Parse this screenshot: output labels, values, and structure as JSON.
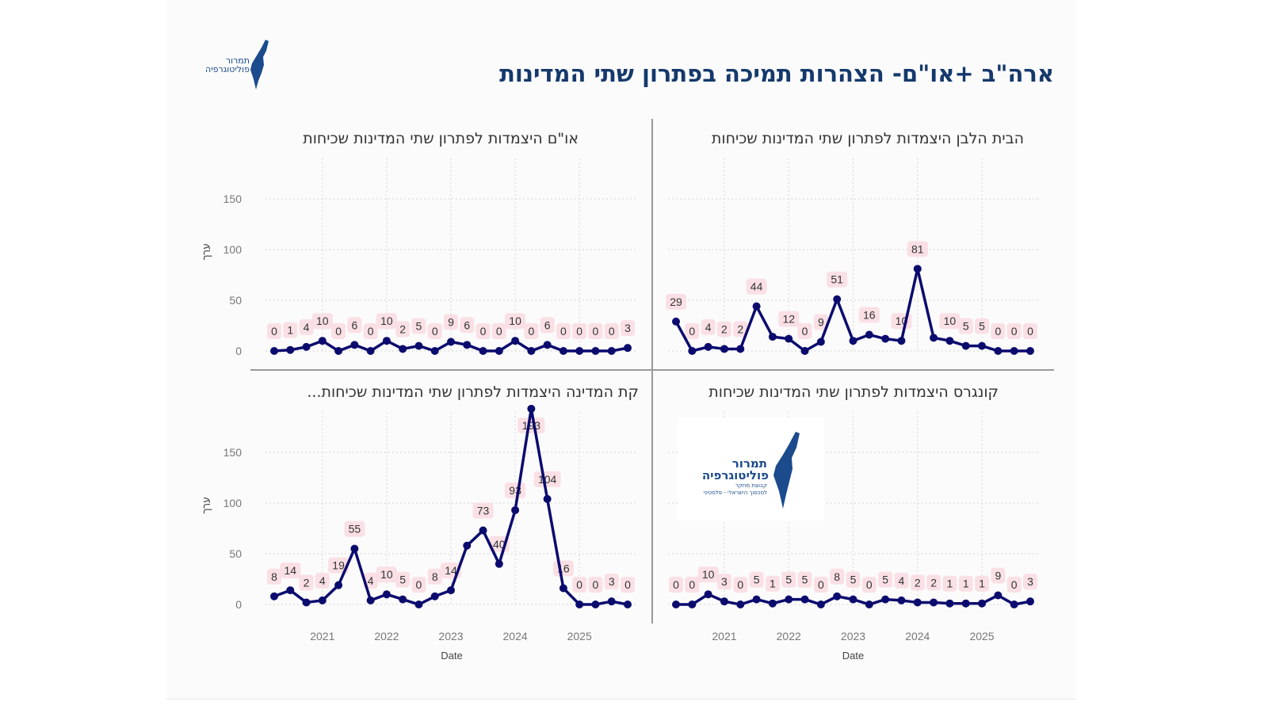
{
  "header": {
    "title": "ארה\"ב +או\"ם- הצהרות תמיכה בפתרון שתי המדינות",
    "logo_line1": "תמרור",
    "logo_line2": "פוליטוגרפיה"
  },
  "watermark_logo": {
    "line1": "תמרור",
    "line2": "פוליטוגרפיה",
    "line3": "קבוצת מחקר",
    "line4": "לסכסוך הישראלי - פלסטיני"
  },
  "colors": {
    "line": "#0b0b6e",
    "label_bg": "#f9dde2",
    "title": "#15396b"
  },
  "chart_data": [
    {
      "type": "line",
      "title": "הבית הלבן היצמדות לפתרון שתי המדינות שכיחות",
      "xlabel": "",
      "ylabel": "",
      "ylim": [
        0,
        180
      ],
      "x_ticks": [
        "2021",
        "2022",
        "2023",
        "2024",
        "2025"
      ],
      "values": [
        29,
        0,
        4,
        2,
        2,
        44,
        14,
        12,
        0,
        9,
        51,
        10,
        16,
        12,
        10,
        81,
        13,
        10,
        5,
        5,
        0,
        0,
        0
      ],
      "labels": [
        "29",
        "0",
        "4",
        "2",
        "2",
        "44",
        "",
        "12",
        "0",
        "9",
        "51",
        "",
        "16",
        "",
        "10",
        "81",
        "",
        "10",
        "5",
        "5",
        "0",
        "0",
        "0"
      ],
      "show_y_ticks": false,
      "show_x_ticks": false
    },
    {
      "type": "line",
      "title": "או\"ם היצמדות לפתרון שתי המדינות שכיחות",
      "xlabel": "",
      "ylabel": "ערך",
      "ylim": [
        0,
        180
      ],
      "y_ticks": [
        "0",
        "50",
        "100",
        "150"
      ],
      "x_ticks": [
        "2021",
        "2022",
        "2023",
        "2024",
        "2025"
      ],
      "values": [
        0,
        1,
        4,
        10,
        0,
        6,
        0,
        10,
        2,
        5,
        0,
        9,
        6,
        0,
        0,
        10,
        0,
        6,
        0,
        0,
        0,
        0,
        3
      ],
      "labels": [
        "0",
        "1",
        "4",
        "10",
        "0",
        "6",
        "0",
        "10",
        "2",
        "5",
        "0",
        "9",
        "6",
        "0",
        "0",
        "10",
        "0",
        "6",
        "0",
        "0",
        "0",
        "0",
        "3"
      ],
      "show_y_ticks": true,
      "show_x_ticks": false
    },
    {
      "type": "line",
      "title": "קונגרס היצמדות לפתרון שתי המדינות שכיחות",
      "xlabel": "Date",
      "ylabel": "",
      "ylim": [
        0,
        180
      ],
      "x_ticks": [
        "2021",
        "2022",
        "2023",
        "2024",
        "2025"
      ],
      "values": [
        0,
        0,
        10,
        3,
        0,
        5,
        1,
        5,
        5,
        0,
        8,
        5,
        0,
        5,
        4,
        2,
        2,
        1,
        1,
        1,
        9,
        0,
        3
      ],
      "labels": [
        "0",
        "0",
        "10",
        "3",
        "0",
        "5",
        "1",
        "5",
        "5",
        "0",
        "8",
        "5",
        "0",
        "5",
        "4",
        "2",
        "2",
        "1",
        "1",
        "1",
        "9",
        "0",
        "3"
      ],
      "show_y_ticks": false,
      "show_x_ticks": true
    },
    {
      "type": "line",
      "title": "קת המדינה היצמדות לפתרון שתי המדינות שכיחות...",
      "xlabel": "Date",
      "ylabel": "ערך",
      "ylim": [
        0,
        180
      ],
      "y_ticks": [
        "0",
        "50",
        "100",
        "150"
      ],
      "x_ticks": [
        "2021",
        "2022",
        "2023",
        "2024",
        "2025"
      ],
      "values": [
        8,
        14,
        2,
        4,
        19,
        55,
        4,
        10,
        5,
        0,
        8,
        14,
        58,
        73,
        40,
        93,
        193,
        104,
        16,
        0,
        0,
        3,
        0
      ],
      "labels": [
        "8",
        "14",
        "2",
        "4",
        "19",
        "55",
        "4",
        "10",
        "5",
        "0",
        "8",
        "14",
        "",
        "73",
        "40",
        "93",
        "193",
        "104",
        "16",
        "0",
        "0",
        "3",
        "0"
      ],
      "show_y_ticks": true,
      "show_x_ticks": true
    }
  ]
}
